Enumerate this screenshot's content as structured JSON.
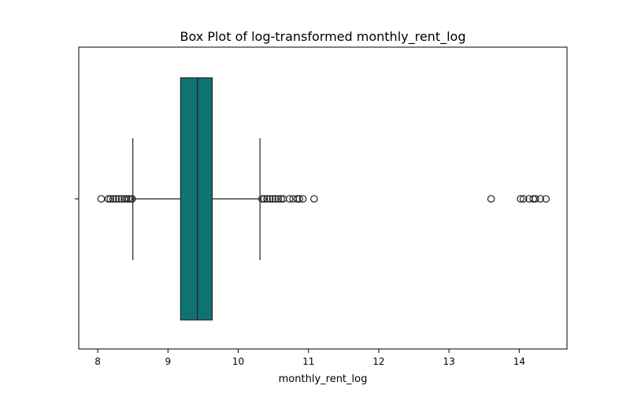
{
  "chart_data": {
    "type": "box",
    "title": "Box Plot of log-transformed monthly_rent_log",
    "xlabel": "monthly_rent_log",
    "ylabel": "",
    "xlim": [
      7.73,
      14.68
    ],
    "xticks": [
      8,
      9,
      10,
      11,
      12,
      13,
      14
    ],
    "orientation": "horizontal",
    "box_color": "#0f7373",
    "grid": false,
    "stats": {
      "whisker_low": 8.5,
      "q1": 9.18,
      "median": 9.42,
      "q3": 9.63,
      "whisker_high": 10.31
    },
    "outliers": [
      8.05,
      8.15,
      8.18,
      8.22,
      8.26,
      8.3,
      8.34,
      8.38,
      8.41,
      8.44,
      8.47,
      8.49,
      10.34,
      10.37,
      10.41,
      10.45,
      10.49,
      10.53,
      10.57,
      10.61,
      10.64,
      10.73,
      10.78,
      10.84,
      10.87,
      10.92,
      11.08,
      13.6,
      14.02,
      14.06,
      14.14,
      14.2,
      14.23,
      14.3,
      14.38
    ]
  }
}
